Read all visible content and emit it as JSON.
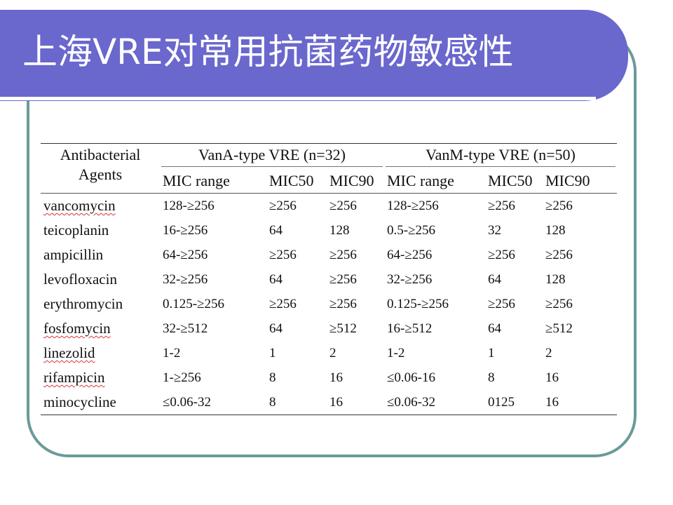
{
  "slide": {
    "title": "上海VRE对常用抗菌药物敏感性"
  },
  "table": {
    "agents_header": "Antibacterial\nAgents",
    "agents_header_line1": "Antibacterial",
    "agents_header_line2": "Agents",
    "groups": [
      {
        "label": "VanA-type VRE (n=32)"
      },
      {
        "label": "VanM-type VRE (n=50)"
      }
    ],
    "subheaders": [
      "MIC range",
      "MIC50",
      "MIC90",
      "MIC range",
      "MIC50",
      "MIC90"
    ],
    "rows": [
      {
        "agent": "vancomycin",
        "cells": [
          "128-≥256",
          "≥256",
          "≥256",
          "128-≥256",
          "≥256",
          "≥256"
        ]
      },
      {
        "agent": "teicoplanin",
        "cells": [
          "16-≥256",
          "64",
          "128",
          "0.5-≥256",
          "32",
          "128"
        ]
      },
      {
        "agent": "ampicillin",
        "cells": [
          "64-≥256",
          "≥256",
          "≥256",
          "64-≥256",
          "≥256",
          "≥256"
        ]
      },
      {
        "agent": "levofloxacin",
        "cells": [
          "32-≥256",
          "64",
          "≥256",
          "32-≥256",
          "64",
          "128"
        ]
      },
      {
        "agent": "erythromycin",
        "cells": [
          "0.125-≥256",
          "≥256",
          "≥256",
          "0.125-≥256",
          "≥256",
          "≥256"
        ]
      },
      {
        "agent": "fosfomycin",
        "cells": [
          "32-≥512",
          "64",
          "≥512",
          "16-≥512",
          "64",
          "≥512"
        ]
      },
      {
        "agent": "linezolid",
        "cells": [
          "1-2",
          "1",
          "2",
          "1-2",
          "1",
          "2"
        ]
      },
      {
        "agent": "rifampicin",
        "cells": [
          "1-≥256",
          "8",
          "16",
          "≤0.06-16",
          "8",
          "16"
        ]
      },
      {
        "agent": "minocycline",
        "cells": [
          "≤0.06-32",
          "8",
          "16",
          "≤0.06-32",
          "0125",
          "16"
        ]
      }
    ]
  },
  "colors": {
    "title_bar": "#6a67cd",
    "frame_border": "#6b9a99",
    "title_text": "#ffffff"
  }
}
